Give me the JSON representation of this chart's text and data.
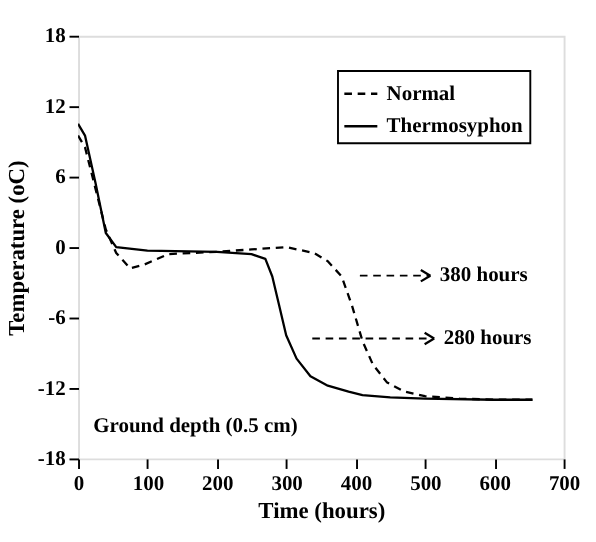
{
  "chart_data": {
    "type": "line",
    "xlabel": "Time (hours)",
    "ylabel": "Temperature (oC)",
    "xlim": [
      0,
      700
    ],
    "xticks": [
      0,
      100,
      200,
      300,
      400,
      500,
      600,
      700
    ],
    "ylim": [
      -18,
      18
    ],
    "yticks": [
      -18,
      -12,
      -6,
      0,
      6,
      12,
      18
    ],
    "grid": false,
    "legend": "top right",
    "marker": "none",
    "series": [
      {
        "name": "Normal",
        "color": "#000000",
        "line_style": "dashed",
        "x": [
          0,
          10,
          25,
          40,
          55,
          75,
          95,
          130,
          200,
          250,
          300,
          340,
          360,
          380,
          395,
          410,
          425,
          445,
          470,
          500,
          550,
          600,
          655
        ],
        "values": [
          9.5,
          8.5,
          5,
          1.5,
          -0.5,
          -1.8,
          -1.5,
          -0.6,
          -0.4,
          -0.2,
          0,
          -0.5,
          -1.2,
          -2.5,
          -5,
          -8,
          -10,
          -11.5,
          -12.3,
          -12.7,
          -12.9,
          -13,
          -13
        ]
      },
      {
        "name": "Thermosyphon",
        "color": "#000000",
        "line_style": "solid",
        "x": [
          0,
          10,
          25,
          40,
          55,
          100,
          200,
          250,
          270,
          280,
          290,
          300,
          315,
          335,
          360,
          390,
          410,
          450,
          500,
          600,
          655
        ],
        "values": [
          10.5,
          9.5,
          5.5,
          1.2,
          0,
          -0.3,
          -0.4,
          -0.6,
          -1,
          -2.5,
          -5,
          -7.5,
          -9.5,
          -11,
          -11.8,
          -12.3,
          -12.6,
          -12.8,
          -12.9,
          -13,
          -13
        ]
      }
    ],
    "annotations": [
      "380 hours",
      "280 hours",
      "Ground depth (0.5 cm)"
    ]
  }
}
